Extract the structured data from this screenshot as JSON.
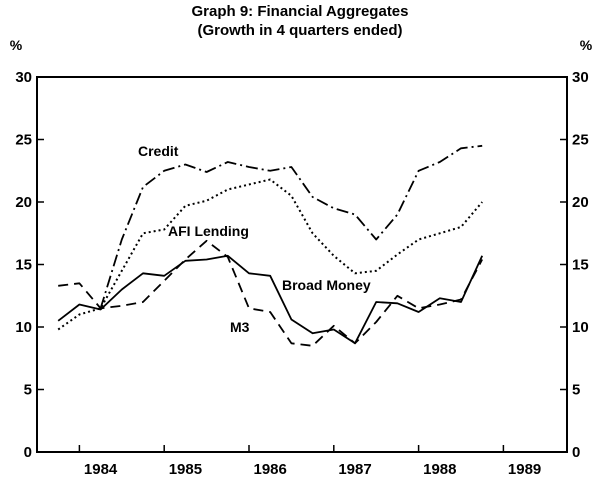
{
  "chart_data": {
    "type": "line",
    "title": "Graph 9: Financial Aggregates",
    "subtitle": "(Growth in 4 quarters ended)",
    "y_unit_left": "%",
    "y_unit_right": "%",
    "ylim": [
      0,
      30
    ],
    "y_ticks": [
      0,
      5,
      10,
      15,
      20,
      25,
      30
    ],
    "xlim": [
      1983.5,
      1989.75
    ],
    "x_tick_labels": [
      "1984",
      "1985",
      "1986",
      "1987",
      "1988",
      "1989"
    ],
    "grid": false,
    "x": [
      1983.75,
      1984.0,
      1984.25,
      1984.5,
      1984.75,
      1985.0,
      1985.25,
      1985.5,
      1985.75,
      1986.0,
      1986.25,
      1986.5,
      1986.75,
      1987.0,
      1987.25,
      1987.5,
      1987.75,
      1988.0,
      1988.25,
      1988.5,
      1988.75
    ],
    "series": [
      {
        "name": "Credit",
        "style": "dash-dot",
        "values": [
          null,
          null,
          11.5,
          17.0,
          21.2,
          22.5,
          23.0,
          22.4,
          23.2,
          22.8,
          22.5,
          22.8,
          20.4,
          19.5,
          19.0,
          17.0,
          19.0,
          22.5,
          23.2,
          24.3,
          24.5
        ]
      },
      {
        "name": "AFI Lending",
        "style": "dotted",
        "values": [
          9.8,
          11.0,
          11.5,
          14.5,
          17.5,
          17.8,
          19.7,
          20.1,
          21.0,
          21.4,
          21.8,
          20.5,
          17.5,
          15.7,
          14.3,
          14.5,
          15.8,
          17.0,
          17.5,
          18.0,
          20.0
        ]
      },
      {
        "name": "Broad Money",
        "style": "solid",
        "values": [
          10.5,
          11.8,
          11.4,
          13.0,
          14.3,
          14.1,
          15.3,
          15.4,
          15.7,
          14.3,
          14.1,
          10.6,
          9.5,
          9.8,
          8.7,
          12.0,
          11.9,
          11.2,
          12.3,
          12.0,
          15.7
        ]
      },
      {
        "name": "M3",
        "style": "dashed",
        "values": [
          13.3,
          13.5,
          11.5,
          11.7,
          12.0,
          13.7,
          15.4,
          16.9,
          15.6,
          11.5,
          11.2,
          8.7,
          8.5,
          10.1,
          8.7,
          10.4,
          12.5,
          11.5,
          11.8,
          12.2,
          15.4
        ]
      }
    ]
  }
}
